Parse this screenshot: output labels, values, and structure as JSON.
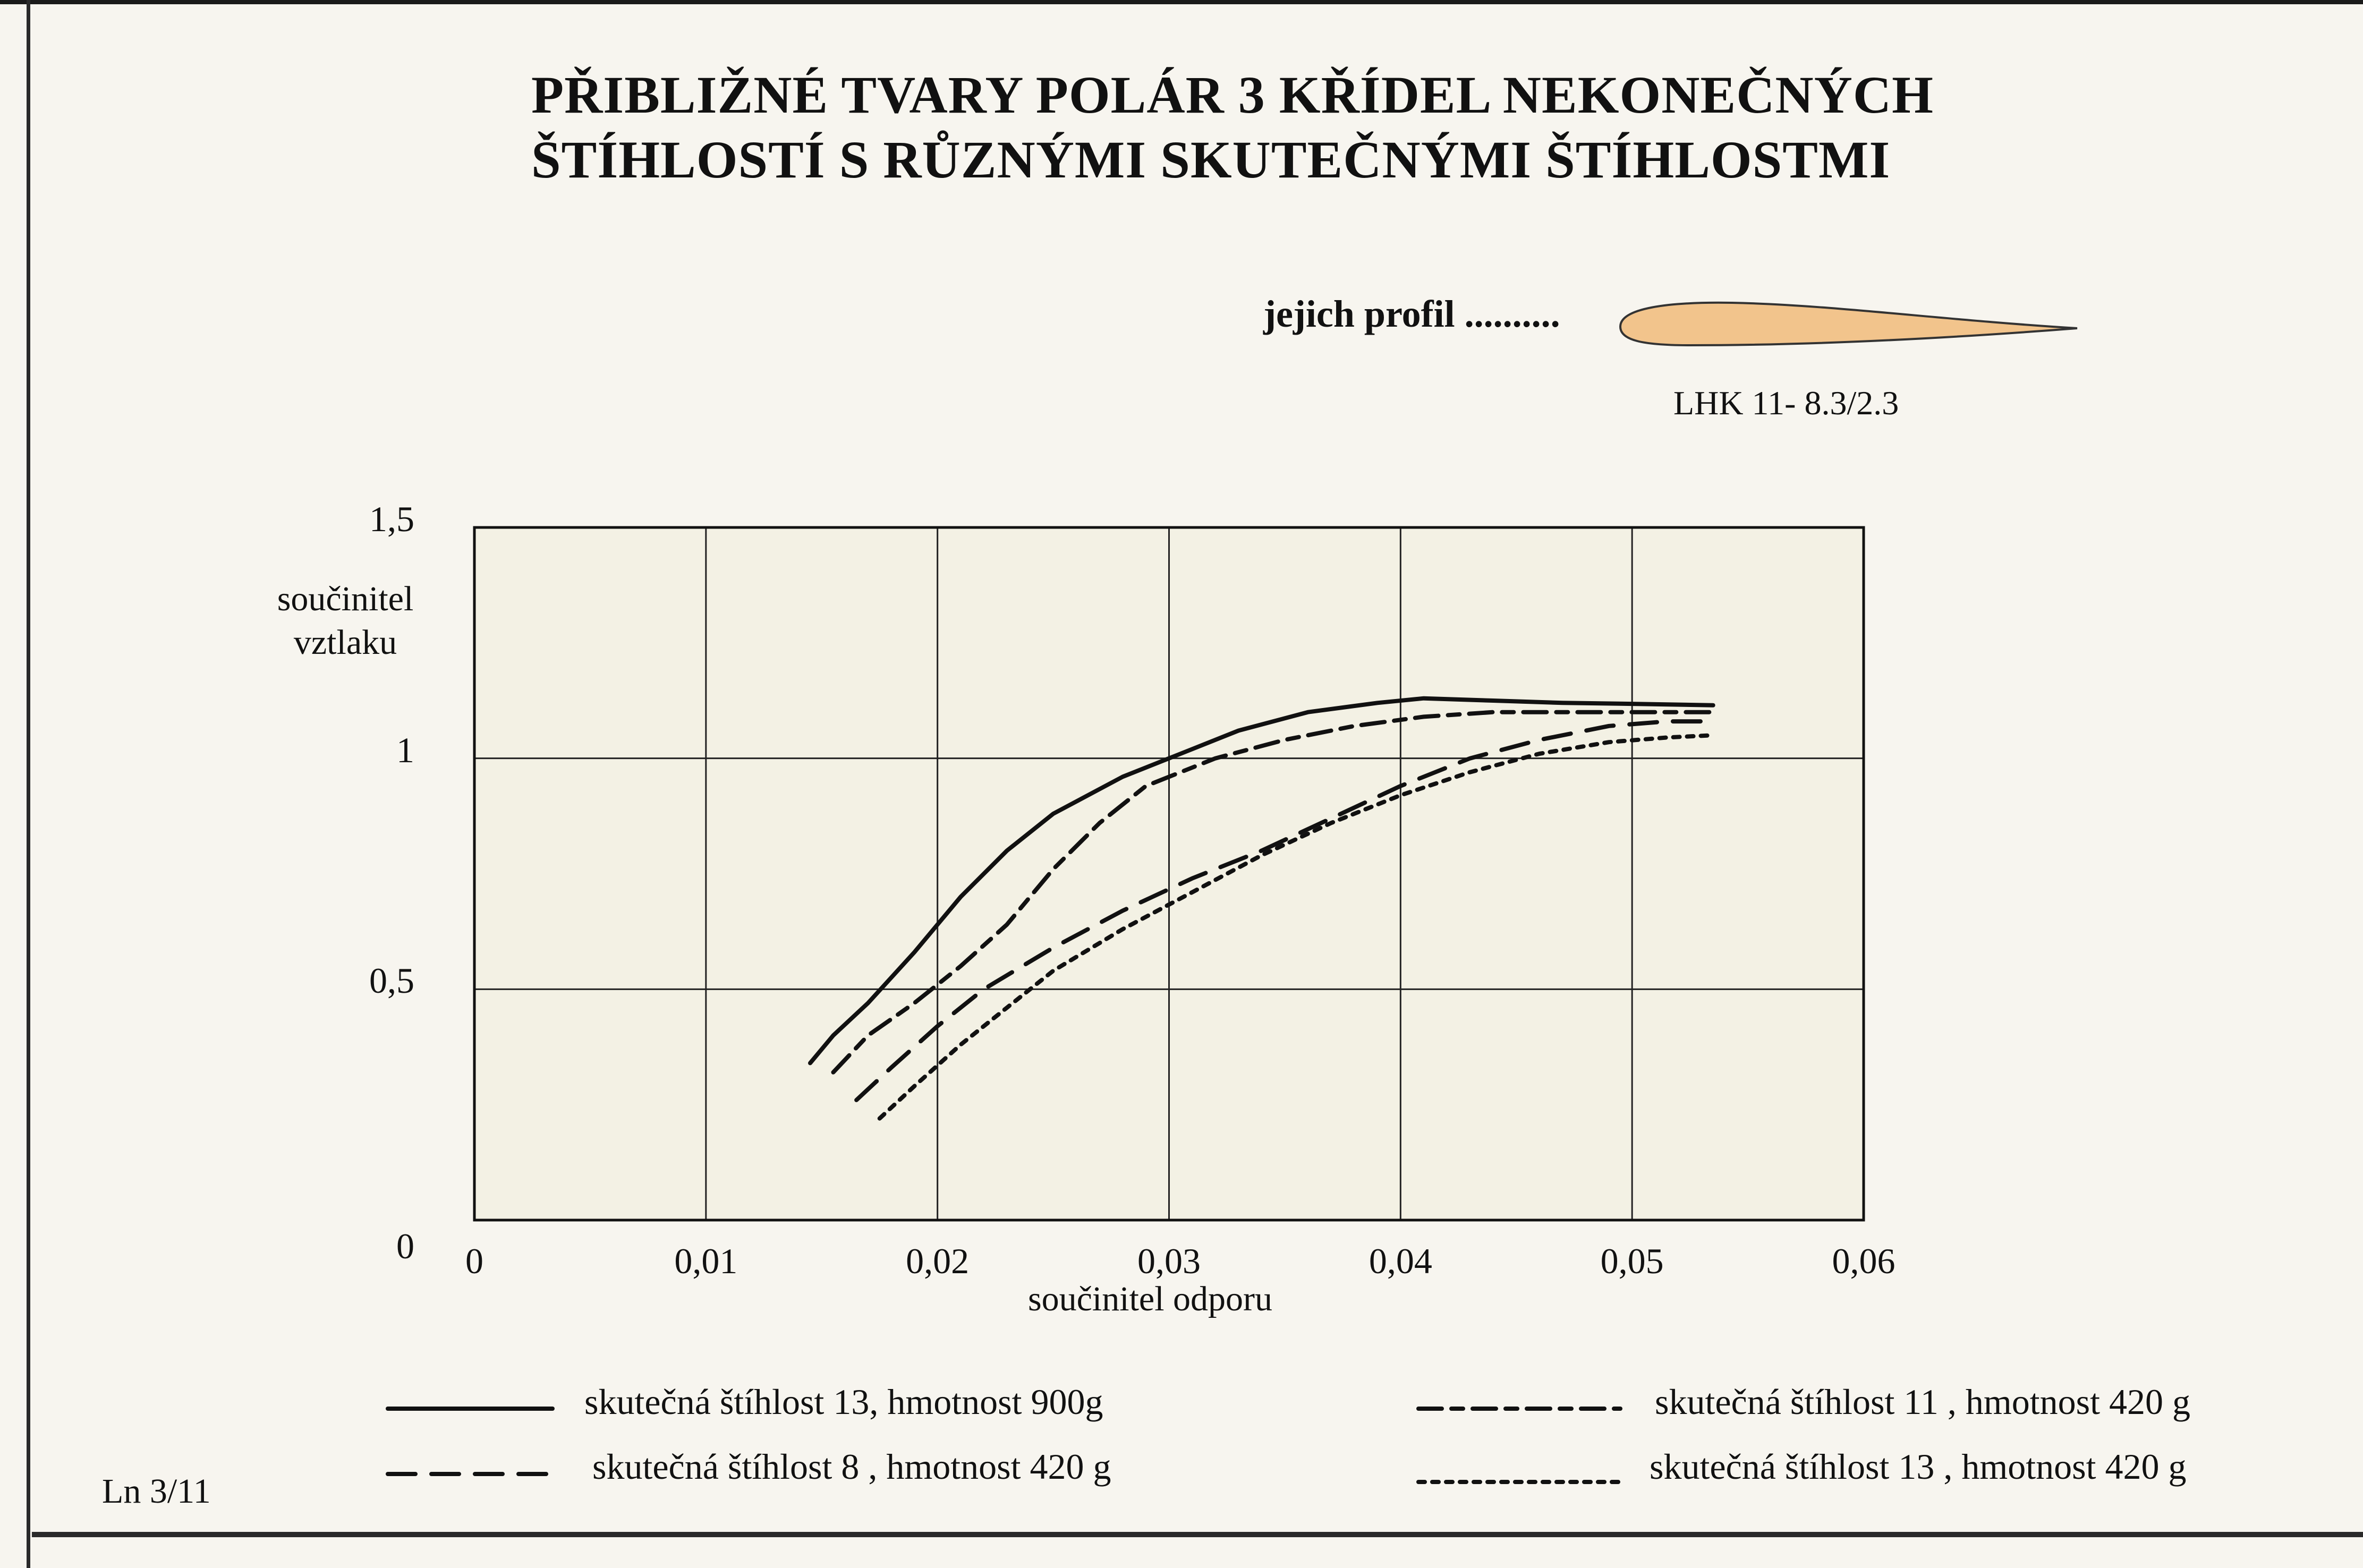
{
  "title_lines": [
    "PŘIBLIŽNÉ TVARY POLÁR 3 KŘÍDEL NEKONEČNÝCH",
    "ŠTÍHLOSTÍ S RŮZNÝMI SKUTEČNÝMI ŠTÍHLOSTMI"
  ],
  "profile": {
    "caption": "jejich profil ..........",
    "name": "LHK 11- 8.3/2.3",
    "fill_color": "#f2c48c"
  },
  "page_ref": "Ln 3/11",
  "colors": {
    "paper": "#f7f5ef",
    "plot_bg": "#f3f1e4",
    "ink": "#111111"
  },
  "chart_data": {
    "type": "line",
    "xlabel": "součinitel odporu",
    "ylabel_lines": [
      "součinitel",
      "vztlaku"
    ],
    "xlim": [
      0,
      0.06
    ],
    "ylim": [
      0,
      1.5
    ],
    "x_ticks": [
      0,
      0.01,
      0.02,
      0.03,
      0.04,
      0.05,
      0.06
    ],
    "x_tick_labels": [
      "0",
      "0,01",
      "0,02",
      "0,03",
      "0,04",
      "0,05",
      "0,06"
    ],
    "y_ticks": [
      0,
      0.5,
      1,
      1.5
    ],
    "y_tick_labels": [
      "0",
      "0,5",
      "1",
      "1,5"
    ],
    "grid": true,
    "legend_position": "bottom",
    "series": [
      {
        "name": "skutečná štíhlost 13, hmotnost 900g",
        "style": "solid",
        "x": [
          0.0145,
          0.0155,
          0.017,
          0.019,
          0.021,
          0.023,
          0.025,
          0.028,
          0.031,
          0.033,
          0.036,
          0.039,
          0.041,
          0.044,
          0.047,
          0.05,
          0.0535
        ],
        "y": [
          0.34,
          0.4,
          0.47,
          0.58,
          0.7,
          0.8,
          0.88,
          0.96,
          1.02,
          1.06,
          1.1,
          1.12,
          1.13,
          1.125,
          1.12,
          1.118,
          1.115
        ]
      },
      {
        "name": "skutečná štíhlost 11 , hmotnost 420 g",
        "style": "dashdot",
        "x": [
          0.0155,
          0.017,
          0.019,
          0.021,
          0.023,
          0.025,
          0.027,
          0.029,
          0.032,
          0.035,
          0.038,
          0.041,
          0.044,
          0.047,
          0.05,
          0.0535
        ],
        "y": [
          0.32,
          0.4,
          0.47,
          0.55,
          0.64,
          0.76,
          0.86,
          0.94,
          1.0,
          1.04,
          1.07,
          1.09,
          1.1,
          1.1,
          1.1,
          1.1
        ]
      },
      {
        "name": "skutečná štíhlost 8 , hmotnost 420 g",
        "style": "dashed",
        "x": [
          0.0165,
          0.018,
          0.02,
          0.022,
          0.025,
          0.028,
          0.031,
          0.034,
          0.037,
          0.04,
          0.043,
          0.046,
          0.049,
          0.0515,
          0.0535
        ],
        "y": [
          0.26,
          0.33,
          0.42,
          0.5,
          0.59,
          0.67,
          0.74,
          0.8,
          0.87,
          0.94,
          1.0,
          1.04,
          1.07,
          1.08,
          1.08
        ]
      },
      {
        "name": "skutečná štíhlost 13 , hmotnost 420 g",
        "style": "dotted",
        "x": [
          0.0175,
          0.019,
          0.021,
          0.023,
          0.025,
          0.028,
          0.031,
          0.034,
          0.037,
          0.04,
          0.043,
          0.046,
          0.049,
          0.0515,
          0.0535
        ],
        "y": [
          0.22,
          0.29,
          0.38,
          0.46,
          0.54,
          0.63,
          0.71,
          0.79,
          0.86,
          0.92,
          0.97,
          1.01,
          1.035,
          1.045,
          1.05
        ]
      }
    ]
  }
}
